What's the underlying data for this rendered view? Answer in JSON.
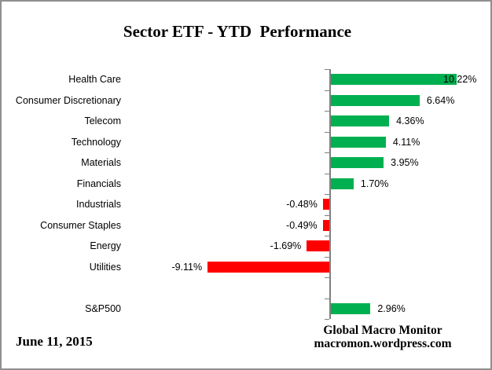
{
  "title": "Sector ETF - YTD  Performance",
  "date_label": "June 11, 2015",
  "credit": {
    "line1": "Global Macro Monitor",
    "line2": "macromon.wordpress.com"
  },
  "colors": {
    "positive": "#00B050",
    "negative": "#FF0000",
    "axis": "#808080"
  },
  "chart_data": {
    "type": "bar",
    "orientation": "horizontal",
    "title": "Sector ETF - YTD  Performance",
    "categories": [
      "Health Care",
      "Consumer Discretionary",
      "Telecom",
      "Technology",
      "Materials",
      "Financials",
      "Industrials",
      "Consumer Staples",
      "Energy",
      "Utilities",
      "S&P500"
    ],
    "values": [
      10.22,
      6.64,
      4.36,
      4.11,
      3.95,
      1.7,
      -0.48,
      -0.49,
      -1.69,
      -9.11,
      2.96
    ],
    "value_labels": [
      "10.22%",
      "6.64%",
      "4.36%",
      "4.11%",
      "3.95%",
      "1.70%",
      "-0.48%",
      "-0.49%",
      "-1.69%",
      "-9.11%",
      "2.96%"
    ],
    "xlabel": "",
    "ylabel": "",
    "xlim": [
      -15.4,
      9.5
    ],
    "grid": false,
    "legend": "none",
    "gap_before_last_category": true,
    "value_labels_shown": true
  }
}
